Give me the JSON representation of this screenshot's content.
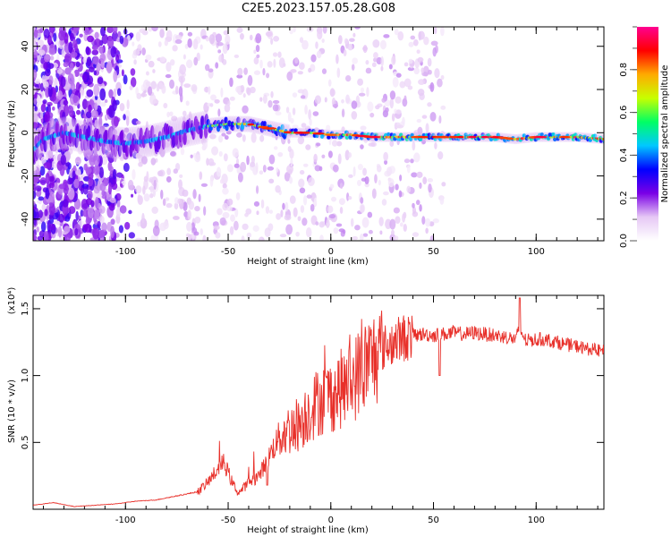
{
  "title": "C2E5.2023.157.05.28.G08",
  "chart_data": [
    {
      "type": "heatmap",
      "xlabel": "Height of straight line (km)",
      "ylabel": "Frequency (Hz)",
      "xlim": [
        -145,
        133
      ],
      "ylim": [
        -50,
        49
      ],
      "x_ticks": [
        -100,
        -50,
        0,
        50,
        100
      ],
      "x_tick_labels": [
        "-100",
        "-50",
        "0",
        "50",
        "100"
      ],
      "y_ticks": [
        -40,
        -20,
        0,
        20,
        40
      ],
      "y_tick_labels": [
        "-40",
        "-20",
        "0",
        "20",
        "40"
      ],
      "colorbar": {
        "label": "Normalized spectral amplitude",
        "range": [
          0,
          1
        ],
        "ticks": [
          0.0,
          0.2,
          0.4,
          0.6,
          0.8
        ],
        "tick_labels": [
          "0.0",
          "0.2",
          "0.4",
          "0.6",
          "0.8"
        ],
        "colormap": [
          "#ffffff",
          "#e6c8f5",
          "#7a00e6",
          "#0000ff",
          "#00c8ff",
          "#00ff64",
          "#c8ff00",
          "#ffaa00",
          "#ff0000",
          "#ff0090"
        ]
      },
      "ridge_x": [
        -145,
        -140,
        -130,
        -120,
        -110,
        -100,
        -90,
        -80,
        -70,
        -60,
        -50,
        -40,
        -30,
        -20,
        -10,
        0,
        10,
        20,
        40,
        60,
        80,
        90,
        100,
        120,
        133
      ],
      "ridge_y": [
        -8,
        -3,
        0,
        -2,
        -4,
        -5,
        -4,
        -2,
        1,
        3,
        4,
        4,
        2,
        0,
        0,
        -1,
        -1,
        -2,
        -2,
        -2,
        -2,
        -3,
        -2,
        -2,
        -3
      ]
    },
    {
      "type": "line",
      "xlabel": "Height of straight line (km)",
      "ylabel": "SNR (10 * v/v)",
      "scale_label": "(x10⁴)",
      "xlim": [
        -145,
        133
      ],
      "ylim": [
        0,
        1.6
      ],
      "x_ticks": [
        -100,
        -50,
        0,
        50,
        100
      ],
      "x_tick_labels": [
        "-100",
        "-50",
        "0",
        "50",
        "100"
      ],
      "y_ticks": [
        0.5,
        1.0,
        1.5
      ],
      "y_tick_labels": [
        "0.5",
        "1.0",
        "1.5"
      ],
      "line_color": "#e8302a",
      "series": [
        {
          "x": [
            -145,
            -135,
            -125,
            -115,
            -105,
            -95,
            -85,
            -75,
            -65,
            -60,
            -55,
            -52,
            -48,
            -45,
            -40,
            -35,
            -30,
            -25,
            -20,
            -15,
            -10,
            -5,
            0,
            5,
            10,
            15,
            20,
            25,
            30,
            35,
            40,
            45,
            50,
            55,
            60,
            65,
            70,
            75,
            80,
            85,
            90,
            92,
            95,
            100,
            105,
            110,
            115,
            120,
            125,
            133
          ],
          "y": [
            0.03,
            0.05,
            0.02,
            0.03,
            0.04,
            0.06,
            0.07,
            0.1,
            0.13,
            0.2,
            0.3,
            0.35,
            0.2,
            0.12,
            0.2,
            0.25,
            0.4,
            0.55,
            0.6,
            0.65,
            0.75,
            0.82,
            0.85,
            0.9,
            0.95,
            1.05,
            1.12,
            1.2,
            1.25,
            1.28,
            1.3,
            1.31,
            1.3,
            1.31,
            1.32,
            1.31,
            1.32,
            1.31,
            1.3,
            1.29,
            1.27,
            1.35,
            1.26,
            1.27,
            1.27,
            1.25,
            1.23,
            1.22,
            1.2,
            1.18
          ]
        }
      ]
    }
  ]
}
